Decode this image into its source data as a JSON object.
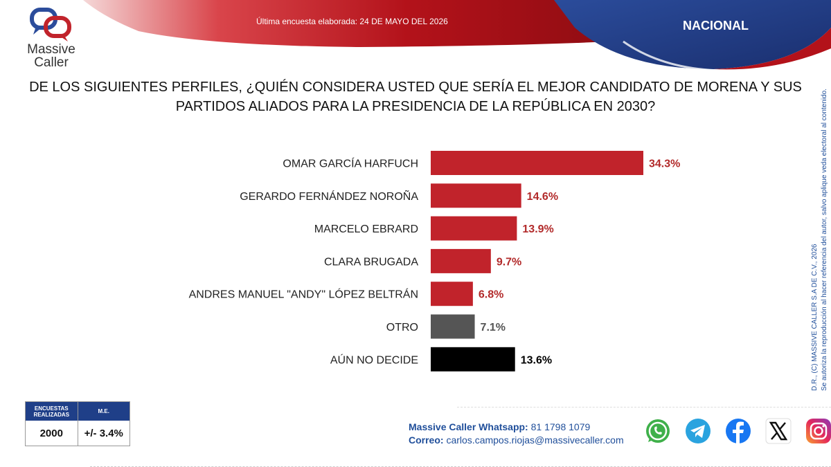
{
  "header": {
    "survey_date": "Última encuesta elaborada: 24 DE MAYO DEL 2026",
    "scope": "NACIONAL",
    "brand_line1": "Massive",
    "brand_line2": "Caller",
    "brand_sub": "MASSIVE CALLER"
  },
  "question": {
    "line1": "DE LOS SIGUIENTES PERFILES, ¿QUIÉN CONSIDERA USTED QUE SERÍA EL MEJOR CANDIDATO DE MORENA Y SUS",
    "line2": "PARTIDOS ALIADOS PARA LA PRESIDENCIA DE LA REPÚBLICA EN 2030?"
  },
  "chart_data": {
    "type": "bar",
    "orientation": "horizontal",
    "categories": [
      "OMAR GARCÍA HARFUCH",
      "GERARDO FERNÁNDEZ NOROÑA",
      "MARCELO EBRARD",
      "CLARA BRUGADA",
      "ANDRES MANUEL \"ANDY\" LÓPEZ BELTRÁN",
      "OTRO",
      "AÚN NO DECIDE"
    ],
    "values": [
      34.3,
      14.6,
      13.9,
      9.7,
      6.8,
      7.1,
      13.6
    ],
    "value_labels": [
      "34.3%",
      "14.6%",
      "13.9%",
      "9.7%",
      "6.8%",
      "7.1%",
      "13.6%"
    ],
    "colors": [
      "#c1232b",
      "#c1232b",
      "#c1232b",
      "#c1232b",
      "#c1232b",
      "#555555",
      "#000000"
    ],
    "label_colors": [
      "#b22a2a",
      "#b22a2a",
      "#b22a2a",
      "#b22a2a",
      "#b22a2a",
      "#555555",
      "#000000"
    ],
    "xlim": [
      0,
      34.3
    ],
    "grid": false,
    "legend": "none"
  },
  "stats": {
    "col1_header": "ENCUESTAS REALIZADAS",
    "col2_header": "M.E.",
    "col1_value": "2000",
    "col2_value": "+/- 3.4%"
  },
  "contact": {
    "whatsapp_label": "Massive Caller Whatsapp:",
    "whatsapp_value": "81 1798 1079",
    "email_label": "Correo:",
    "email_value": "carlos.campos.riojas@massivecaller.com"
  },
  "social_icons": [
    "whatsapp-icon",
    "telegram-icon",
    "facebook-icon",
    "x-icon",
    "instagram-icon"
  ],
  "side_notice": {
    "line1": "D.R., (C) MASSIVE CALLER S.A DE C.V., 2026",
    "line2": "Se autoriza la reproducción al hacer referencia del autor, salvo aplique veda electoral al contenido."
  },
  "colors": {
    "brand_red": "#c1232b",
    "brand_navy": "#1f3f88"
  }
}
